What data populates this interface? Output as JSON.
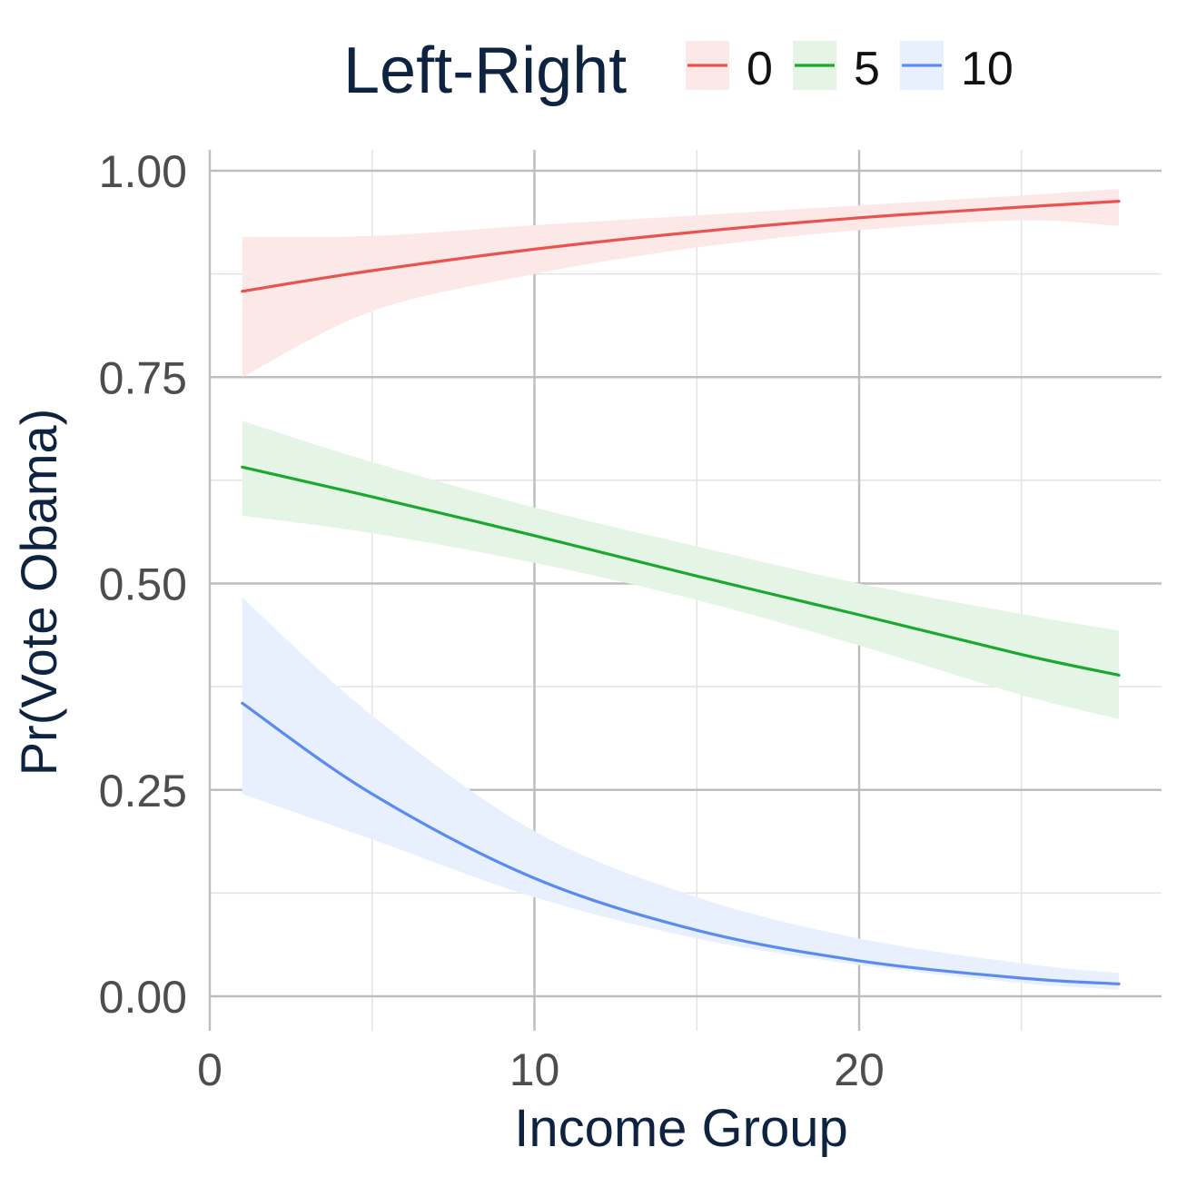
{
  "chart_data": {
    "type": "line",
    "xlabel": "Income Group",
    "ylabel": "Pr(Vote Obama)",
    "xlim": [
      0,
      29
    ],
    "ylim": [
      0,
      1
    ],
    "x_ticks": [
      "0",
      "10",
      "20"
    ],
    "x_tick_values": [
      0,
      10,
      20
    ],
    "y_ticks": [
      "0.00",
      "0.25",
      "0.50",
      "0.75",
      "1.00"
    ],
    "y_tick_values": [
      0,
      0.25,
      0.5,
      0.75,
      1.0
    ],
    "grid": true,
    "legend": {
      "title": "Left-Right",
      "placement": "top"
    },
    "x": [
      1,
      5,
      10,
      15,
      20,
      25,
      28
    ],
    "series": [
      {
        "name": "0",
        "color": "#e8534f",
        "band_color": "#fde8e8",
        "values": [
          0.854,
          0.879,
          0.905,
          0.926,
          0.943,
          0.956,
          0.963
        ],
        "lower": [
          0.75,
          0.83,
          0.875,
          0.907,
          0.928,
          0.94,
          0.933
        ],
        "upper": [
          0.92,
          0.921,
          0.934,
          0.946,
          0.958,
          0.97,
          0.978
        ]
      },
      {
        "name": "5",
        "color": "#1aa82e",
        "band_color": "#e4f5e5",
        "values": [
          0.641,
          0.605,
          0.558,
          0.509,
          0.462,
          0.414,
          0.389
        ],
        "lower": [
          0.582,
          0.561,
          0.525,
          0.48,
          0.425,
          0.365,
          0.336
        ],
        "upper": [
          0.697,
          0.647,
          0.592,
          0.545,
          0.5,
          0.463,
          0.443
        ]
      },
      {
        "name": "10",
        "color": "#5b8af0",
        "band_color": "#e8f0fd",
        "values": [
          0.355,
          0.245,
          0.143,
          0.08,
          0.043,
          0.022,
          0.015
        ],
        "lower": [
          0.245,
          0.19,
          0.12,
          0.07,
          0.038,
          0.016,
          0.008
        ],
        "upper": [
          0.483,
          0.34,
          0.2,
          0.12,
          0.07,
          0.04,
          0.028
        ]
      }
    ]
  }
}
